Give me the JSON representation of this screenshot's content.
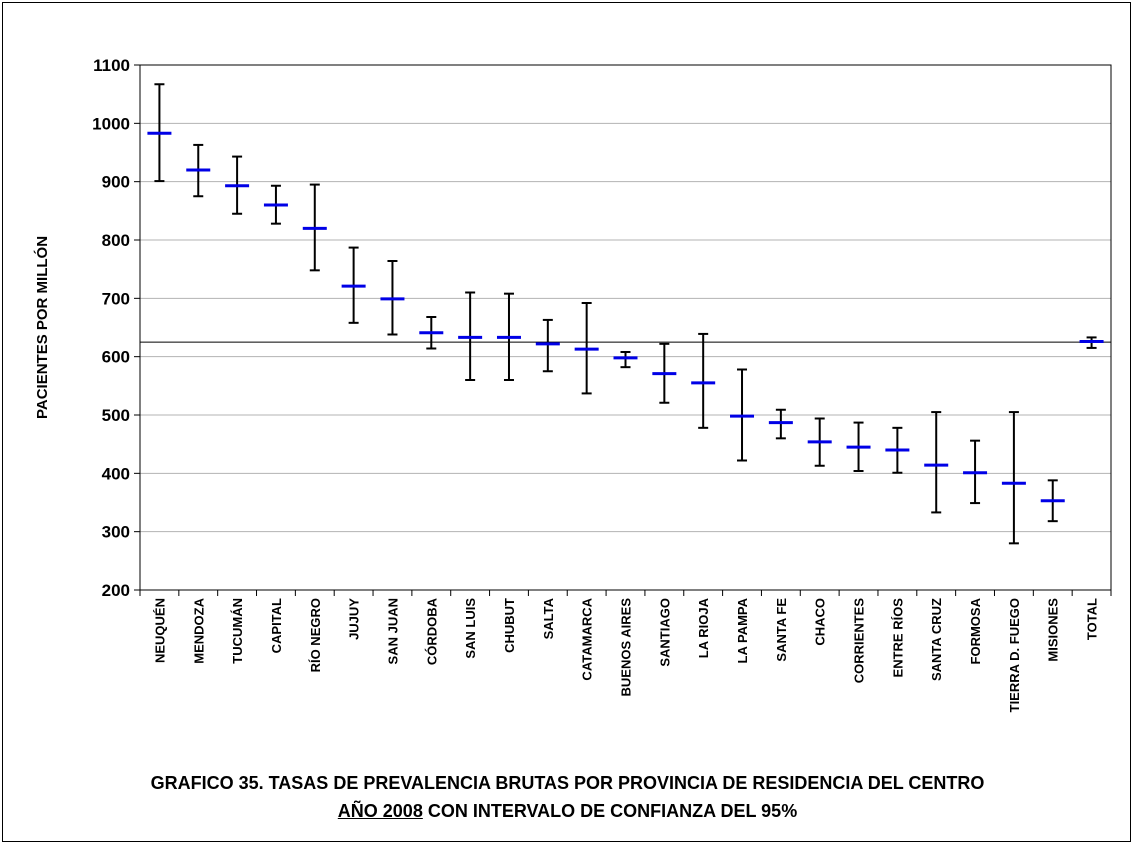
{
  "chart_data": {
    "type": "scatter",
    "ylabel": "PACIENTES POR MILLÓN",
    "ylim": [
      200,
      1100
    ],
    "yticks": [
      "200",
      "300",
      "400",
      "500",
      "600",
      "700",
      "800",
      "900",
      "1000",
      "1100"
    ],
    "grid": true,
    "reference_line": 625,
    "categories": [
      "NEUQUÉN",
      "MENDOZA",
      "TUCUMÁN",
      "CAPITAL",
      "RÍO NEGRO",
      "JUJUY",
      "SAN JUAN",
      "CÓRDOBA",
      "SAN LUIS",
      "CHUBUT",
      "SALTA",
      "CATAMARCA",
      "BUENOS AIRES",
      "SANTIAGO",
      "LA RIOJA",
      "LA PAMPA",
      "SANTA FE",
      "CHACO",
      "CORRIENTES",
      "ENTRE RÍOS",
      "SANTA CRUZ",
      "FORMOSA",
      "TIERRA  D. FUEGO",
      "MISIONES",
      "TOTAL"
    ],
    "series": [
      {
        "values": [
          983,
          920,
          893,
          860,
          820,
          721,
          699,
          641,
          633,
          633,
          622,
          613,
          598,
          571,
          555,
          498,
          487,
          454,
          445,
          440,
          414,
          401,
          383,
          353,
          626
        ],
        "lower": [
          901,
          875,
          845,
          828,
          748,
          658,
          638,
          614,
          560,
          560,
          575,
          537,
          582,
          521,
          478,
          422,
          460,
          413,
          404,
          401,
          333,
          349,
          280,
          318,
          615
        ],
        "upper": [
          1067,
          963,
          943,
          893,
          895,
          787,
          764,
          668,
          710,
          708,
          663,
          692,
          608,
          622,
          639,
          578,
          509,
          494,
          487,
          478,
          505,
          456,
          505,
          388,
          633
        ]
      }
    ],
    "colors": {
      "point": "#0000e6",
      "errorbar": "#000000",
      "grid": "#b3b3b3"
    }
  },
  "caption": {
    "line1": "GRAFICO 35. TASAS DE PREVALENCIA BRUTAS POR PROVINCIA DE RESIDENCIA DEL CENTRO",
    "line2_underlined": "AÑO 2008",
    "line2_rest": " CON  INTERVALO DE CONFIANZA DEL 95%"
  }
}
